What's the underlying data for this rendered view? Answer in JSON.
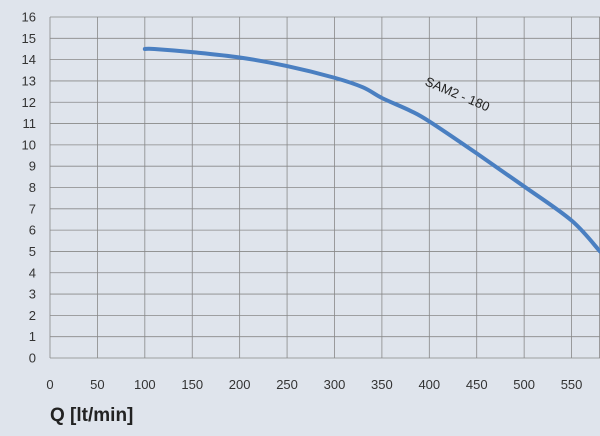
{
  "chart_data": {
    "type": "line",
    "xlabel": "Q [lt/min]",
    "ylabel": "",
    "xlim": [
      0,
      580
    ],
    "ylim": [
      0,
      16
    ],
    "x_ticks": [
      0,
      50,
      100,
      150,
      200,
      250,
      300,
      350,
      400,
      450,
      500,
      550
    ],
    "y_ticks": [
      0,
      1,
      2,
      3,
      4,
      5,
      6,
      7,
      8,
      9,
      10,
      11,
      12,
      13,
      14,
      15,
      16
    ],
    "grid": true,
    "series": [
      {
        "name": "SAM2 - 180",
        "color": "#4a7fc1",
        "x": [
          100,
          110,
          150,
          200,
          250,
          300,
          330,
          350,
          380,
          400,
          450,
          500,
          550,
          580
        ],
        "y": [
          14.5,
          14.5,
          14.35,
          14.1,
          13.7,
          13.15,
          12.7,
          12.2,
          11.6,
          11.1,
          9.6,
          8.05,
          6.45,
          5.0
        ]
      }
    ]
  }
}
